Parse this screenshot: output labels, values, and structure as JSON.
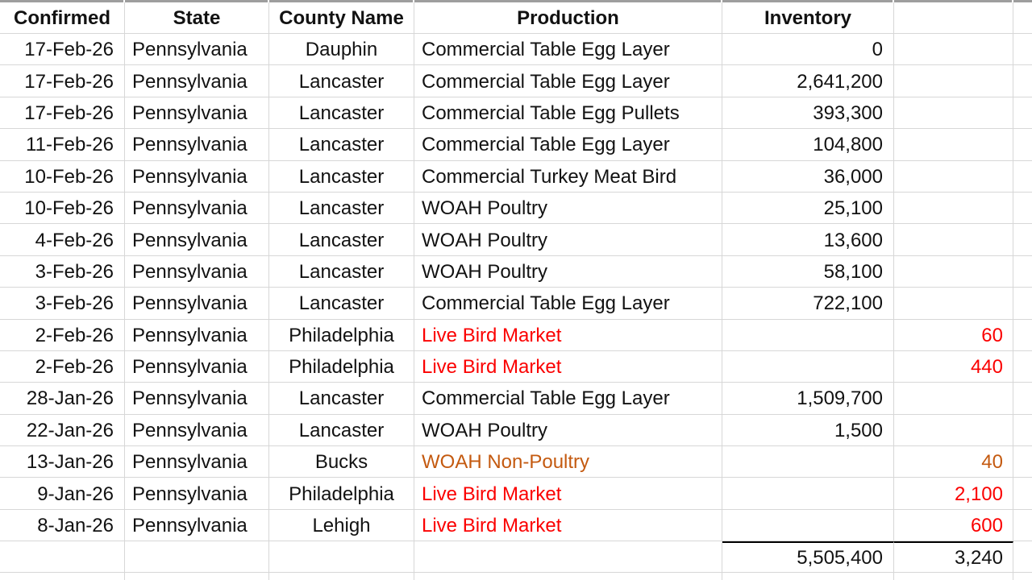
{
  "colors": {
    "text": "#121212",
    "red": "#FB0000",
    "orange": "#C45A10",
    "gridline": "#D7D7D7",
    "top_strip": "#9E9E9E",
    "sum_line": "#000000"
  },
  "table": {
    "columns": [
      {
        "label": "Confirmed"
      },
      {
        "label": "State"
      },
      {
        "label": "County Name"
      },
      {
        "label": "Production"
      },
      {
        "label": "Inventory"
      },
      {
        "label": ""
      }
    ],
    "rows": [
      {
        "confirmed": "17-Feb-26",
        "state": "Pennsylvania",
        "county": "Dauphin",
        "production": "Commercial Table Egg Layer",
        "inventory": "0",
        "extra": "",
        "style": ""
      },
      {
        "confirmed": "17-Feb-26",
        "state": "Pennsylvania",
        "county": "Lancaster",
        "production": "Commercial Table Egg Layer",
        "inventory": "2,641,200",
        "extra": "",
        "style": ""
      },
      {
        "confirmed": "17-Feb-26",
        "state": "Pennsylvania",
        "county": "Lancaster",
        "production": "Commercial Table Egg Pullets",
        "inventory": "393,300",
        "extra": "",
        "style": ""
      },
      {
        "confirmed": "11-Feb-26",
        "state": "Pennsylvania",
        "county": "Lancaster",
        "production": "Commercial Table Egg Layer",
        "inventory": "104,800",
        "extra": "",
        "style": ""
      },
      {
        "confirmed": "10-Feb-26",
        "state": "Pennsylvania",
        "county": "Lancaster",
        "production": "Commercial Turkey Meat Bird",
        "inventory": "36,000",
        "extra": "",
        "style": ""
      },
      {
        "confirmed": "10-Feb-26",
        "state": "Pennsylvania",
        "county": "Lancaster",
        "production": "WOAH Poultry",
        "inventory": "25,100",
        "extra": "",
        "style": ""
      },
      {
        "confirmed": "4-Feb-26",
        "state": "Pennsylvania",
        "county": "Lancaster",
        "production": "WOAH Poultry",
        "inventory": "13,600",
        "extra": "",
        "style": ""
      },
      {
        "confirmed": "3-Feb-26",
        "state": "Pennsylvania",
        "county": "Lancaster",
        "production": "WOAH Poultry",
        "inventory": "58,100",
        "extra": "",
        "style": ""
      },
      {
        "confirmed": "3-Feb-26",
        "state": "Pennsylvania",
        "county": "Lancaster",
        "production": "Commercial Table Egg Layer",
        "inventory": "722,100",
        "extra": "",
        "style": ""
      },
      {
        "confirmed": "2-Feb-26",
        "state": "Pennsylvania",
        "county": "Philadelphia",
        "production": "Live Bird Market",
        "inventory": "",
        "extra": "60",
        "style": "red"
      },
      {
        "confirmed": "2-Feb-26",
        "state": "Pennsylvania",
        "county": "Philadelphia",
        "production": "Live Bird Market",
        "inventory": "",
        "extra": "440",
        "style": "red"
      },
      {
        "confirmed": "28-Jan-26",
        "state": "Pennsylvania",
        "county": "Lancaster",
        "production": "Commercial Table Egg Layer",
        "inventory": "1,509,700",
        "extra": "",
        "style": ""
      },
      {
        "confirmed": "22-Jan-26",
        "state": "Pennsylvania",
        "county": "Lancaster",
        "production": "WOAH Poultry",
        "inventory": "1,500",
        "extra": "",
        "style": ""
      },
      {
        "confirmed": "13-Jan-26",
        "state": "Pennsylvania",
        "county": "Bucks",
        "production": "WOAH Non-Poultry",
        "inventory": "",
        "extra": "40",
        "style": "orange"
      },
      {
        "confirmed": "9-Jan-26",
        "state": "Pennsylvania",
        "county": "Philadelphia",
        "production": "Live Bird Market",
        "inventory": "",
        "extra": "2,100",
        "style": "red"
      },
      {
        "confirmed": "8-Jan-26",
        "state": "Pennsylvania",
        "county": "Lehigh",
        "production": "Live Bird Market",
        "inventory": "",
        "extra": "600",
        "style": "red"
      }
    ],
    "totals": {
      "inventory": "5,505,400",
      "extra": "3,240"
    }
  }
}
